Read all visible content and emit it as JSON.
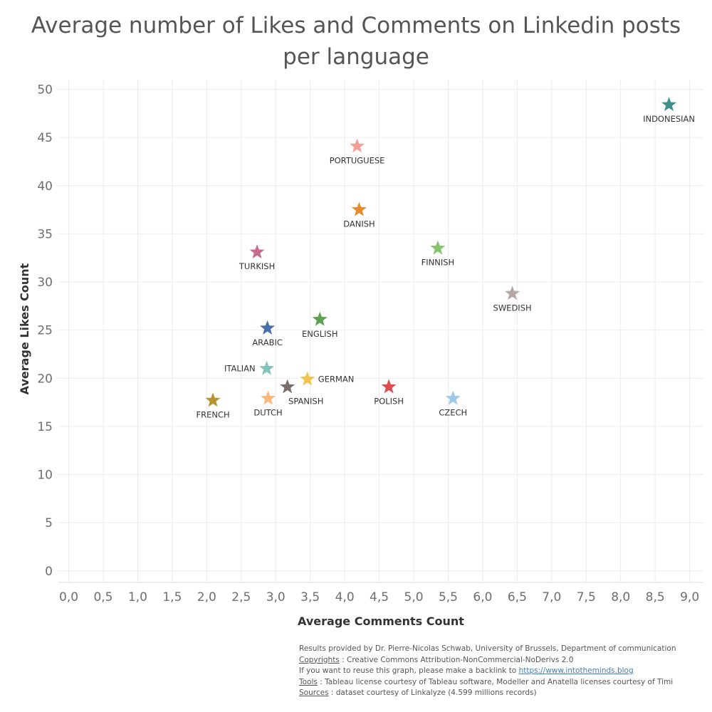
{
  "chart_data": {
    "type": "scatter",
    "title": "Average number of Likes and Comments on Linkedin posts per language",
    "xlabel": "Average Comments Count",
    "ylabel": "Average Likes Count",
    "xlim": [
      -0.15,
      9.2
    ],
    "ylim": [
      -1.2,
      51
    ],
    "xticks": [
      0.0,
      0.5,
      1.0,
      1.5,
      2.0,
      2.5,
      3.0,
      3.5,
      4.0,
      4.5,
      5.0,
      5.5,
      6.0,
      6.5,
      7.0,
      7.5,
      8.0,
      8.5,
      9.0
    ],
    "xtick_labels": [
      "0,0",
      "0,5",
      "1,0",
      "1,5",
      "2,0",
      "2,5",
      "3,0",
      "3,5",
      "4,0",
      "4,5",
      "5,0",
      "5,5",
      "6,0",
      "6,5",
      "7,0",
      "7,5",
      "8,0",
      "8,5",
      "9,0"
    ],
    "yticks": [
      0,
      5,
      10,
      15,
      20,
      25,
      30,
      35,
      40,
      45,
      50
    ],
    "ytick_labels": [
      "0",
      "5",
      "10",
      "15",
      "20",
      "25",
      "30",
      "35",
      "40",
      "45",
      "50"
    ],
    "grid": true,
    "marker": "star",
    "points": [
      {
        "label": "INDONESIAN",
        "x": 8.7,
        "y": 48.4,
        "color": "#3f8f8a",
        "label_pos": "below"
      },
      {
        "label": "PORTUGUESE",
        "x": 4.18,
        "y": 44.1,
        "color": "#f2a09a",
        "label_pos": "below"
      },
      {
        "label": "DANISH",
        "x": 4.21,
        "y": 37.5,
        "color": "#e8892b",
        "label_pos": "below"
      },
      {
        "label": "FINNISH",
        "x": 5.35,
        "y": 33.5,
        "color": "#86c56c",
        "label_pos": "below"
      },
      {
        "label": "TURKISH",
        "x": 2.73,
        "y": 33.1,
        "color": "#c76b8e",
        "label_pos": "below"
      },
      {
        "label": "SWEDISH",
        "x": 6.43,
        "y": 28.8,
        "color": "#b5a9a5",
        "label_pos": "below"
      },
      {
        "label": "ENGLISH",
        "x": 3.64,
        "y": 26.1,
        "color": "#5ba14f",
        "label_pos": "below"
      },
      {
        "label": "ARABIC",
        "x": 2.88,
        "y": 25.2,
        "color": "#4a6fa5",
        "label_pos": "below"
      },
      {
        "label": "ITALIAN",
        "x": 2.87,
        "y": 21.0,
        "color": "#82c2bb",
        "label_pos": "left"
      },
      {
        "label": "GERMAN",
        "x": 3.46,
        "y": 19.9,
        "color": "#f3c24a",
        "label_pos": "right"
      },
      {
        "label": "SPANISH",
        "x": 3.17,
        "y": 19.1,
        "color": "#7b6f6b",
        "label_pos": "below-right"
      },
      {
        "label": "POLISH",
        "x": 4.64,
        "y": 19.1,
        "color": "#dd4d50",
        "label_pos": "below"
      },
      {
        "label": "DUTCH",
        "x": 2.89,
        "y": 17.9,
        "color": "#f7b980",
        "label_pos": "below"
      },
      {
        "label": "CZECH",
        "x": 5.57,
        "y": 17.9,
        "color": "#9fc9ea",
        "label_pos": "below"
      },
      {
        "label": "FRENCH",
        "x": 2.09,
        "y": 17.7,
        "color": "#b8942e",
        "label_pos": "below"
      }
    ]
  },
  "credits": {
    "line1": "Results provided by Dr. Pierre-Nicolas Schwab, University of Brussels, Department of communication",
    "copyrights_label": "Copyrights",
    "copyrights_text": " : Creative Commons Attribution-NonCommercial-NoDerivs 2.0",
    "reuse_text": "If you want to reuse this graph, please make a backlink to ",
    "reuse_link": "https://www.intotheminds.blog",
    "tools_label": "Tools",
    "tools_text": " : Tableau license courtesy of Tableau software, Modeller and Anatella licenses courtesy of Timi",
    "sources_label": "Sources",
    "sources_text": " : dataset courtesy of Linkalyze (4.599 millions records)"
  }
}
